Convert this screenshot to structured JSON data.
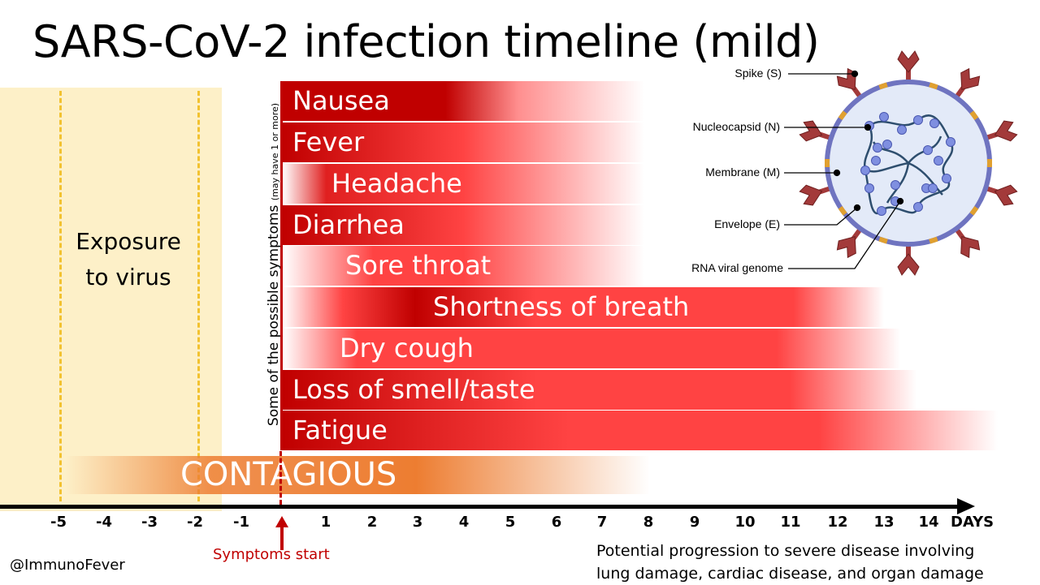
{
  "title": "SARS-CoV-2 infection timeline (mild)",
  "exposure": {
    "label_line1": "Exposure",
    "label_line2": "to virus"
  },
  "side_label": {
    "main": "Some of the possible symptoms",
    "note": "(may have 1 or more)"
  },
  "symptoms": [
    {
      "label": "Nausea"
    },
    {
      "label": "Fever"
    },
    {
      "label": "Headache"
    },
    {
      "label": "Diarrhea"
    },
    {
      "label": "Sore throat"
    },
    {
      "label": "Shortness of breath"
    },
    {
      "label": "Dry cough"
    },
    {
      "label": "Loss of smell/taste"
    },
    {
      "label": "Fatigue"
    }
  ],
  "contagious": {
    "label": "CONTAGIOUS"
  },
  "axis": {
    "ticks": [
      "-5",
      "-4",
      "-3",
      "-2",
      "-1",
      "1",
      "2",
      "3",
      "4",
      "5",
      "6",
      "7",
      "8",
      "9",
      "10",
      "11",
      "12",
      "13",
      "14"
    ],
    "unit_label": "DAYS"
  },
  "symptoms_start": "Symptoms start",
  "progression": {
    "line1": "Potential progression to severe disease involving",
    "line2": "lung damage, cardiac disease, and organ damage"
  },
  "credit": "@ImmunoFever",
  "virus_labels": {
    "spike": "Spike (S)",
    "nucleocapsid": "Nucleocapsid (N)",
    "membrane": "Membrane (M)",
    "envelope": "Envelope (E)",
    "rna": "RNA viral genome"
  },
  "colors": {
    "dark_red": "#c00000",
    "red": "#ff4343",
    "orange": "#ed7d31",
    "exposure": "#fdf0c8",
    "dash_yellow": "#f2c230"
  }
}
